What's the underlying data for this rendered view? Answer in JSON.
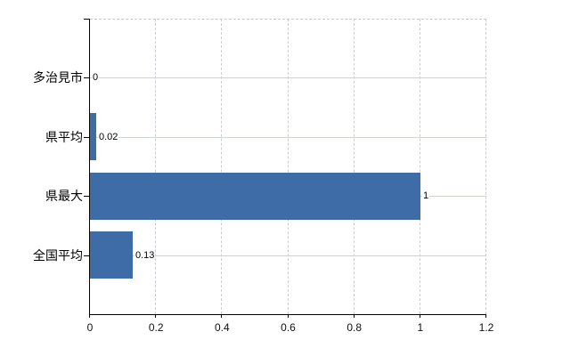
{
  "chart_data": {
    "type": "bar",
    "orientation": "horizontal",
    "title": "",
    "xlabel": "",
    "ylabel": "",
    "categories": [
      "多治見市",
      "県平均",
      "県最大",
      "全国平均"
    ],
    "values": [
      0,
      0.02,
      1,
      0.13
    ],
    "value_labels": [
      "0",
      "0.02",
      "1",
      "0.13"
    ],
    "xlim": [
      0,
      1.2
    ],
    "x_ticks": [
      0,
      0.2,
      0.4,
      0.6,
      0.8,
      1,
      1.2
    ],
    "x_tick_labels": [
      "0",
      "0.2",
      "0.4",
      "0.6",
      "0.8",
      "1",
      "1.2"
    ],
    "grid": true,
    "legend": false,
    "colors": {
      "bar": "#3e6ca6",
      "axis": "#000000",
      "h_gridline": "#ccd6cc",
      "v_gridline": "#ccccd4",
      "plot_border_dashed": "#c8c8c8",
      "text": "#000000"
    }
  }
}
